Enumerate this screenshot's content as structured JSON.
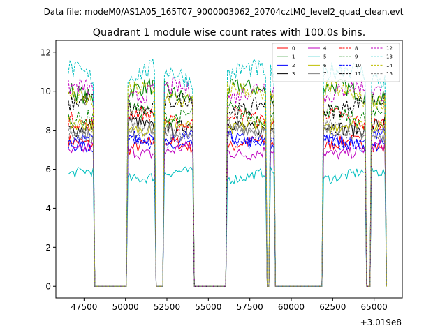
{
  "suptitle": "Data file: modeM0/AS1A05_165T07_9000003062_20704cztM0_level2_quad_clean.evt",
  "chart_data": {
    "type": "line",
    "title": "Quadrant 1 module wise count rates with 100.0s bins.",
    "xlabel": "",
    "ylabel": "",
    "x_offset_label": "+3.019e8",
    "xlim": [
      45800,
      66700
    ],
    "ylim": [
      -0.6,
      12.6
    ],
    "xticks": [
      47500,
      50000,
      52500,
      55000,
      57500,
      60000,
      62500,
      65000
    ],
    "xtick_labels": [
      "47500",
      "50000",
      "52500",
      "55000",
      "57500",
      "60000",
      "62500",
      "65000"
    ],
    "yticks": [
      0,
      2,
      4,
      6,
      8,
      10,
      12
    ],
    "ytick_labels": [
      "0",
      "2",
      "4",
      "6",
      "8",
      "10",
      "12"
    ],
    "bin_width_s": 100,
    "x_start": 46550,
    "x_end": 65750,
    "active_intervals": [
      [
        46550,
        48050
      ],
      [
        50150,
        51750
      ],
      [
        52350,
        54050
      ],
      [
        56150,
        58450
      ],
      [
        58750,
        58950
      ],
      [
        61950,
        64450
      ],
      [
        64850,
        65650
      ]
    ],
    "legend": {
      "location": "top-right",
      "ncol": 4
    },
    "series": [
      {
        "name": "0",
        "color": "#ff0000",
        "dash": "solid",
        "level": 7.2
      },
      {
        "name": "1",
        "color": "#008000",
        "dash": "solid",
        "level": 9.9
      },
      {
        "name": "2",
        "color": "#0000ff",
        "dash": "solid",
        "level": 7.4
      },
      {
        "name": "3",
        "color": "#000000",
        "dash": "solid",
        "level": 8.3
      },
      {
        "name": "4",
        "color": "#bf00bf",
        "dash": "solid",
        "level": 7.0
      },
      {
        "name": "5",
        "color": "#00bfbf",
        "dash": "solid",
        "level": 5.7
      },
      {
        "name": "6",
        "color": "#bfbf00",
        "dash": "solid",
        "level": 8.1
      },
      {
        "name": "7",
        "color": "#808080",
        "dash": "solid",
        "level": 7.8
      },
      {
        "name": "8",
        "color": "#ff0000",
        "dash": "dashed",
        "level": 8.6
      },
      {
        "name": "9",
        "color": "#008000",
        "dash": "dashed",
        "level": 8.9
      },
      {
        "name": "10",
        "color": "#0000ff",
        "dash": "dashed",
        "level": 7.6
      },
      {
        "name": "11",
        "color": "#000000",
        "dash": "dashed",
        "level": 9.3
      },
      {
        "name": "12",
        "color": "#bf00bf",
        "dash": "dashed",
        "level": 9.9
      },
      {
        "name": "13",
        "color": "#00bfbf",
        "dash": "dashed",
        "level": 10.8
      },
      {
        "name": "14",
        "color": "#bfbf00",
        "dash": "dashed",
        "level": 9.8
      },
      {
        "name": "15",
        "color": "#808080",
        "dash": "dashed",
        "level": 8.1
      }
    ]
  }
}
